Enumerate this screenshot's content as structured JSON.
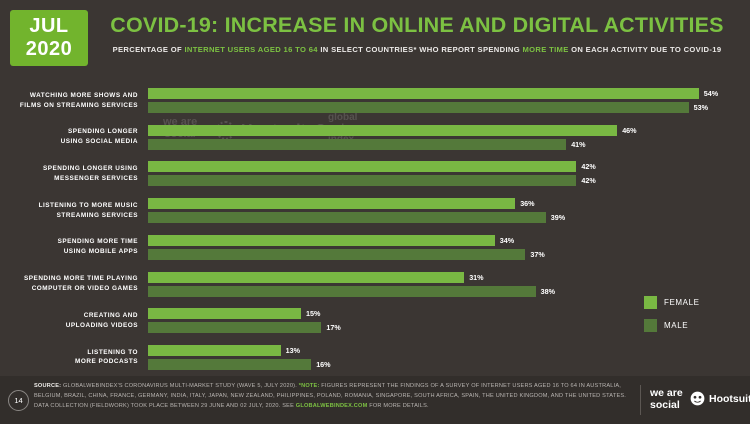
{
  "badge": {
    "month": "JUL",
    "year": "2020"
  },
  "header": {
    "title": "COVID-19: INCREASE IN ONLINE AND DIGITAL ACTIVITIES",
    "subtitle_segments": [
      {
        "style": "plain",
        "text": "PERCENTAGE OF "
      },
      {
        "style": "hl",
        "text": "INTERNET USERS AGED 16 TO 64"
      },
      {
        "style": "plain",
        "text": " IN SELECT COUNTRIES* WHO REPORT SPENDING "
      },
      {
        "style": "hl",
        "text": "MORE TIME"
      },
      {
        "style": "plain",
        "text": " ON EACH ACTIVITY DUE TO COVID-19"
      }
    ]
  },
  "chart_data": {
    "type": "bar",
    "orientation": "horizontal",
    "title": "COVID-19: INCREASE IN ONLINE AND DIGITAL ACTIVITIES",
    "categories": [
      "WATCHING MORE SHOWS AND\nFILMS ON STREAMING SERVICES",
      "SPENDING LONGER\nUSING SOCIAL MEDIA",
      "SPENDING LONGER USING\nMESSENGER SERVICES",
      "LISTENING TO MORE MUSIC\nSTREAMING SERVICES",
      "SPENDING MORE TIME\nUSING MOBILE APPS",
      "SPENDING MORE TIME PLAYING\nCOMPUTER OR VIDEO GAMES",
      "CREATING AND\nUPLOADING VIDEOS",
      "LISTENING TO\nMORE PODCASTS"
    ],
    "series": [
      {
        "name": "FEMALE",
        "color": "#79b843",
        "values": [
          54,
          46,
          42,
          36,
          34,
          31,
          15,
          13
        ]
      },
      {
        "name": "MALE",
        "color": "#54793a",
        "values": [
          53,
          41,
          42,
          39,
          37,
          38,
          17,
          16
        ]
      }
    ],
    "value_suffix": "%",
    "xlim": [
      0,
      60
    ],
    "grid": false,
    "legend_position": "right-bottom"
  },
  "legend": [
    {
      "label": "FEMALE",
      "color": "#79b843"
    },
    {
      "label": "MALE",
      "color": "#54793a"
    }
  ],
  "watermarks": {
    "we_are_social": "we are\nsocial",
    "hootsuite": "Hootsuite®",
    "globalwebindex": "global\nweb\nindex"
  },
  "footer": {
    "page_number": "14",
    "segments": [
      {
        "style": "srcbold",
        "text": "SOURCE:"
      },
      {
        "style": "body",
        "text": " GLOBALWEBINDEX'S CORONAVIRUS MULTI-MARKET STUDY (WAVE 5, JULY 2020). "
      },
      {
        "style": "note",
        "text": "*NOTE:"
      },
      {
        "style": "body",
        "text": " FIGURES REPRESENT THE FINDINGS OF A SURVEY OF INTERNET USERS AGED 16 TO 64 IN AUSTRALIA, BELGIUM, BRAZIL, CHINA, FRANCE, GERMANY, INDIA, ITALY, JAPAN, NEW ZEALAND, PHILIPPINES, POLAND, ROMANIA, SINGAPORE, SOUTH AFRICA, SPAIN, THE UNITED KINGDOM, AND THE UNITED STATES. DATA COLLECTION (FIELDWORK) TOOK PLACE BETWEEN 29 JUNE AND 02 JULY, 2020. SEE "
      },
      {
        "style": "link",
        "text": "GLOBALWEBINDEX.COM"
      },
      {
        "style": "body",
        "text": " FOR MORE DETAILS."
      }
    ],
    "we_are_social_logo": "we are\nsocial",
    "hootsuite_logo": "Hootsuite"
  },
  "colors": {
    "background": "#3b3633",
    "footer_background": "#322e2b",
    "accent_green": "#7cc142",
    "badge_green": "#72b42d",
    "female_bar": "#79b843",
    "male_bar": "#54793a"
  }
}
